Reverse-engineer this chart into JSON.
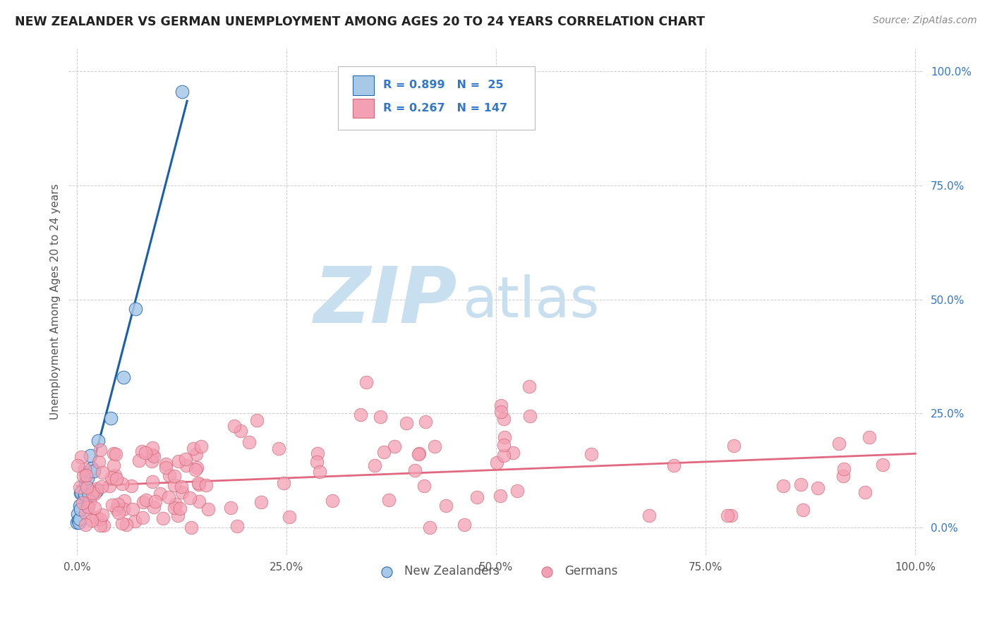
{
  "title": "NEW ZEALANDER VS GERMAN UNEMPLOYMENT AMONG AGES 20 TO 24 YEARS CORRELATION CHART",
  "source": "Source: ZipAtlas.com",
  "ylabel": "Unemployment Among Ages 20 to 24 years",
  "nz_R": 0.899,
  "nz_N": 25,
  "de_R": 0.267,
  "de_N": 147,
  "nz_color": "#a8c8e8",
  "de_color": "#f4a0b4",
  "nz_line_color": "#1a5faa",
  "de_line_color": "#e06880",
  "legend_text_color": "#3377cc",
  "watermark_zip_color": "#c8dff0",
  "watermark_atlas_color": "#c8dff0",
  "background_color": "#ffffff",
  "grid_color": "#c8c8c8",
  "title_color": "#222222",
  "source_color": "#888888"
}
